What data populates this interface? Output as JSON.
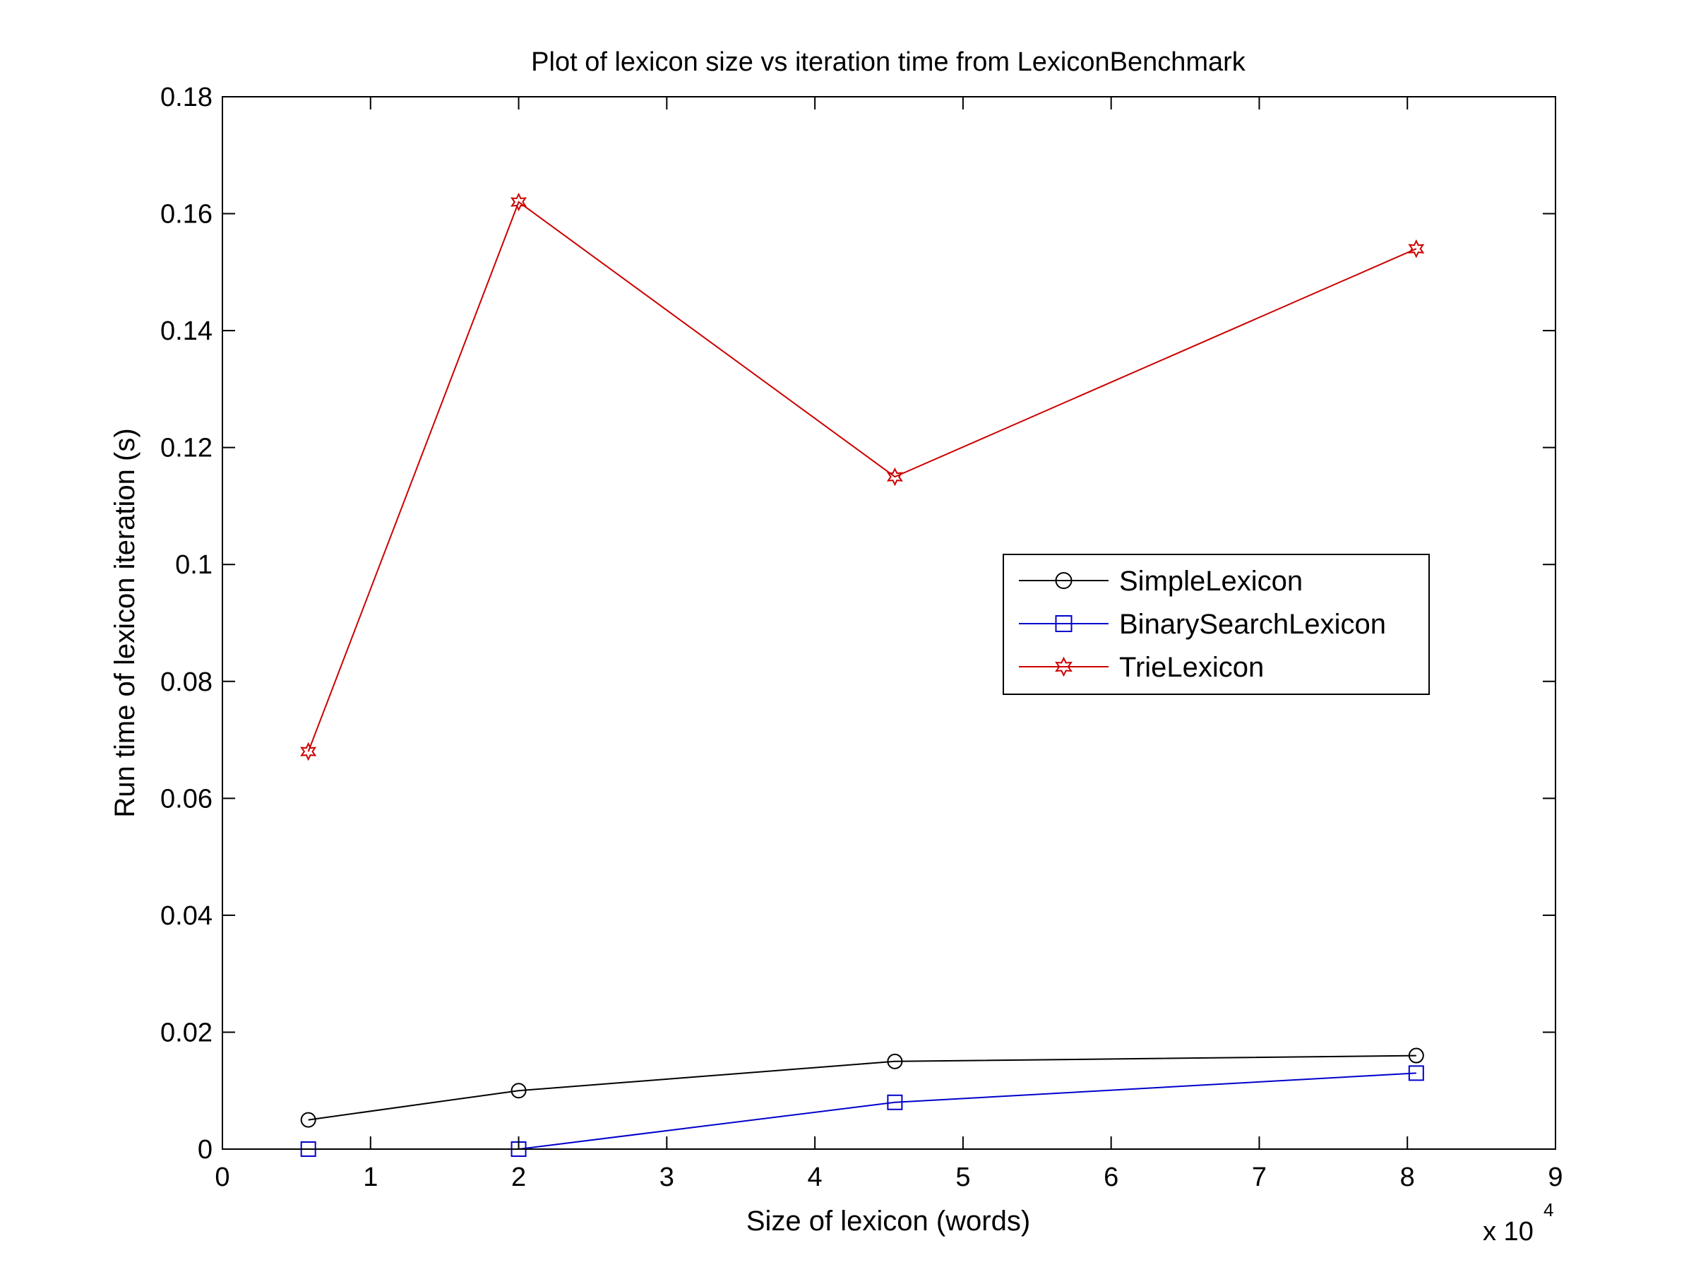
{
  "chart_data": {
    "type": "line",
    "title": "Plot of lexicon size vs iteration time from LexiconBenchmark",
    "xlabel": "Size of lexicon (words)",
    "ylabel": "Run time of lexicon iteration (s)",
    "x_multiplier": {
      "base": "x 10",
      "exponent": "4"
    },
    "xlim": [
      0,
      90000
    ],
    "ylim": [
      0,
      0.18
    ],
    "x_ticks": [
      0,
      10000,
      20000,
      30000,
      40000,
      50000,
      60000,
      70000,
      80000,
      90000
    ],
    "x_tick_labels": [
      "0",
      "1",
      "2",
      "3",
      "4",
      "5",
      "6",
      "7",
      "8",
      "9"
    ],
    "y_ticks": [
      0,
      0.02,
      0.04,
      0.06,
      0.08,
      0.1,
      0.12,
      0.14,
      0.16,
      0.18
    ],
    "y_tick_labels": [
      "0",
      "0.02",
      "0.04",
      "0.06",
      "0.08",
      "0.1",
      "0.12",
      "0.14",
      "0.16",
      "0.18"
    ],
    "grid": false,
    "legend_position": "center-right",
    "x": [
      5800,
      20000,
      45400,
      80600
    ],
    "series": [
      {
        "name": "SimpleLexicon",
        "color": "#000000",
        "marker": "circle",
        "values": [
          0.005,
          0.01,
          0.015,
          0.016
        ]
      },
      {
        "name": "BinarySearchLexicon",
        "color": "#0000cc",
        "marker": "square",
        "values": [
          0.0,
          0.0,
          0.008,
          0.013
        ]
      },
      {
        "name": "TrieLexicon",
        "color": "#cc0000",
        "marker": "hexagram",
        "values": [
          0.068,
          0.162,
          0.115,
          0.154
        ]
      }
    ]
  }
}
